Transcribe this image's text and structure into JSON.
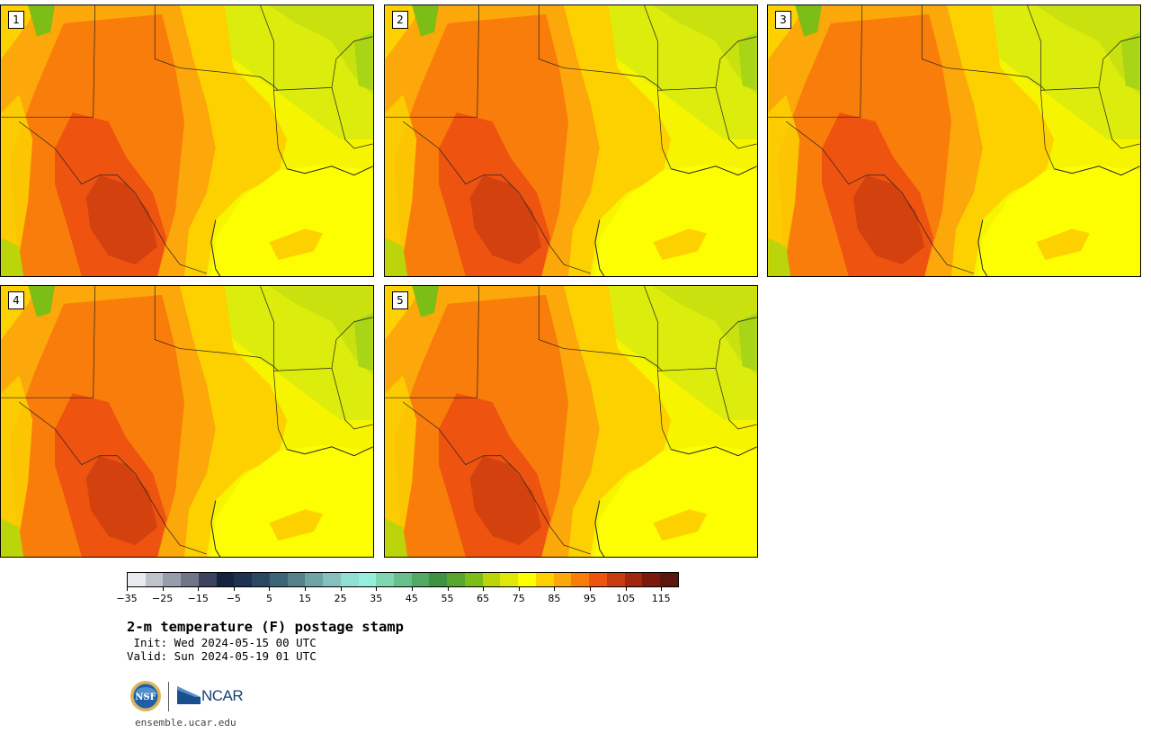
{
  "panels": [
    {
      "label": "1"
    },
    {
      "label": "2"
    },
    {
      "label": "3"
    },
    {
      "label": "4"
    },
    {
      "label": "5"
    }
  ],
  "colorbar": {
    "colors": [
      "#e8ecf0",
      "#bfc3cc",
      "#989dab",
      "#6f7687",
      "#3b435e",
      "#152240",
      "#1f3150",
      "#2b4763",
      "#3c6577",
      "#548288",
      "#6fa3a4",
      "#86c0bd",
      "#8fdfd2",
      "#96efdc",
      "#7fd6b0",
      "#66bf8d",
      "#52a964",
      "#3f9240",
      "#56a630",
      "#7dbe16",
      "#bcd40a",
      "#e0e80b",
      "#fefe02",
      "#fdd100",
      "#fca70a",
      "#f97d0a",
      "#ee5310",
      "#c83a10",
      "#a1270e",
      "#7b1a0c",
      "#5c160c"
    ],
    "tick_labels": [
      "−35",
      "−25",
      "−15",
      "−5",
      "5",
      "15",
      "25",
      "35",
      "45",
      "55",
      "65",
      "75",
      "85",
      "95",
      "105",
      "115"
    ],
    "range": [
      -35,
      120
    ]
  },
  "title": "2-m temperature (F) postage stamp",
  "init": " Init: Wed 2024-05-15 00 UTC",
  "valid": "Valid: Sun 2024-05-19 01 UTC",
  "logos": {
    "nsf_text": "NSF",
    "ncar_text": "NCAR"
  },
  "url": "ensemble.ucar.edu"
}
